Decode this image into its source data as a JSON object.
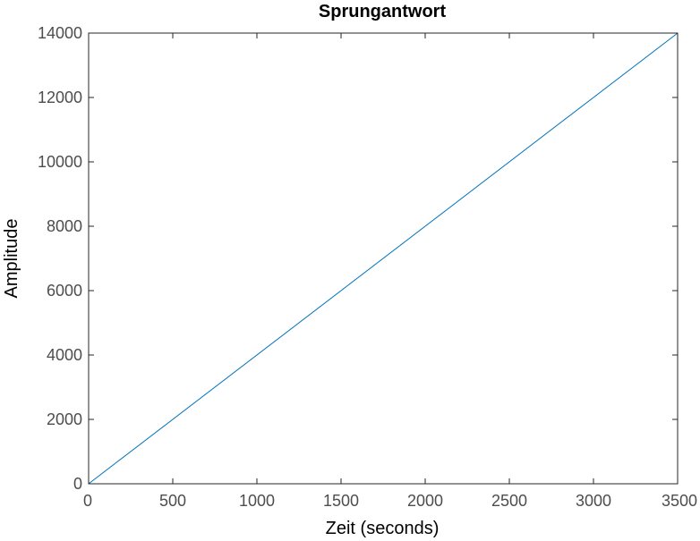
{
  "chart_data": {
    "type": "line",
    "title": "Sprungantwort",
    "xlabel": "Zeit (seconds)",
    "ylabel": "Amplitude",
    "xlim": [
      0,
      3500
    ],
    "ylim": [
      0,
      14000
    ],
    "xticks": [
      0,
      500,
      1000,
      1500,
      2000,
      2500,
      3000,
      3500
    ],
    "yticks": [
      0,
      2000,
      4000,
      6000,
      8000,
      10000,
      12000,
      14000
    ],
    "grid": false,
    "series": [
      {
        "x": [
          0,
          3500
        ],
        "y": [
          0,
          14000
        ],
        "color": "#0072BD"
      }
    ],
    "axis_color": "#262626",
    "tick_color": "#4d4d4d"
  }
}
